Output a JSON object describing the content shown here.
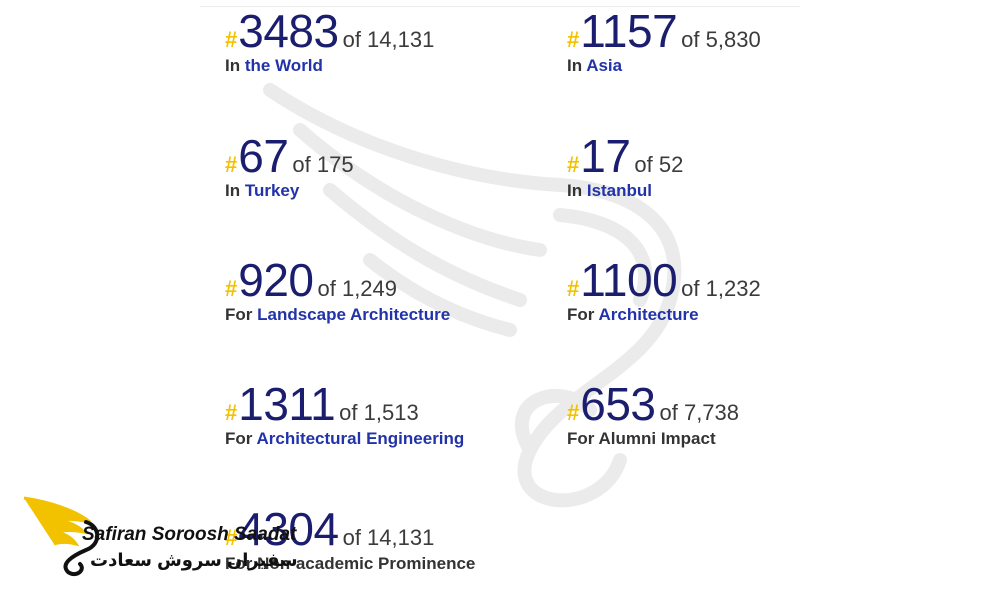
{
  "stats": [
    {
      "rank": "3483",
      "of": "of 14,131",
      "prefix": "In",
      "category": "the World"
    },
    {
      "rank": "1157",
      "of": "of 5,830",
      "prefix": "In",
      "category": "Asia"
    },
    {
      "rank": "67",
      "of": "of 175",
      "prefix": "In",
      "category": "Turkey"
    },
    {
      "rank": "17",
      "of": "of 52",
      "prefix": "In",
      "category": "Istanbul"
    },
    {
      "rank": "920",
      "of": "of 1,249",
      "prefix": "For",
      "category": "Landscape Architecture"
    },
    {
      "rank": "1100",
      "of": "of 1,232",
      "prefix": "For",
      "category": "Architecture"
    },
    {
      "rank": "1311",
      "of": "of 1,513",
      "prefix": "For",
      "category": "Architectural Engineering"
    },
    {
      "rank": "653",
      "of": "of 7,738",
      "prefix": "For",
      "category": "Alumni Impact"
    },
    {
      "rank": "4304",
      "of": "of 14,131",
      "prefix": "For",
      "category": "Non-academic Prominence"
    }
  ],
  "hash_symbol": "#",
  "logo": {
    "name_en": "Safiran Soroosh Saadat",
    "name_fa": "سفیران سروش سعادت"
  },
  "colors": {
    "rank": "#1b1d6e",
    "hash": "#f2c200",
    "category": "#2233aa",
    "logo_wing": "#f2c200"
  }
}
